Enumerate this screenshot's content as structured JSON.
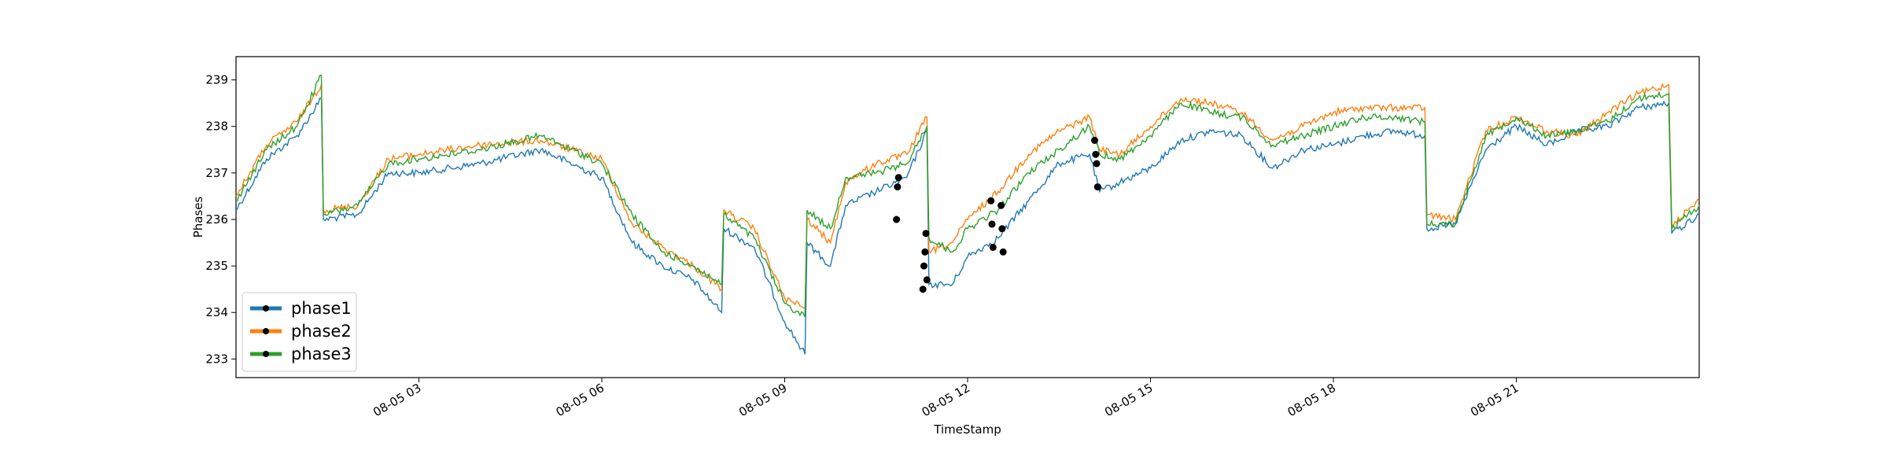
{
  "chart_data": {
    "type": "line",
    "title": "",
    "xlabel": "TimeStamp",
    "ylabel": "Phases",
    "xlim": [
      "2023-08-05 00:00",
      "2023-08-06 00:00"
    ],
    "ylim": [
      232.6,
      239.5
    ],
    "x_ticks": [
      {
        "value": "2023-08-05 03:00",
        "label": "08-05 03"
      },
      {
        "value": "2023-08-05 06:00",
        "label": "08-05 06"
      },
      {
        "value": "2023-08-05 09:00",
        "label": "08-05 09"
      },
      {
        "value": "2023-08-05 12:00",
        "label": "08-05 12"
      },
      {
        "value": "2023-08-05 15:00",
        "label": "08-05 15"
      },
      {
        "value": "2023-08-05 18:00",
        "label": "08-05 18"
      },
      {
        "value": "2023-08-05 21:00",
        "label": "08-05 21"
      }
    ],
    "y_ticks": [
      233,
      234,
      235,
      236,
      237,
      238,
      239
    ],
    "grid": false,
    "legend": {
      "position": "lower-left"
    },
    "x": [
      "2023-08-05 00:00",
      "2023-08-05 00:30",
      "2023-08-05 01:00",
      "2023-08-05 01:24",
      "2023-08-05 01:26",
      "2023-08-05 02:00",
      "2023-08-05 02:30",
      "2023-08-05 03:00",
      "2023-08-05 04:00",
      "2023-08-05 05:00",
      "2023-08-05 06:00",
      "2023-08-05 06:30",
      "2023-08-05 07:00",
      "2023-08-05 07:30",
      "2023-08-05 07:58",
      "2023-08-05 08:00",
      "2023-08-05 08:30",
      "2023-08-05 09:00",
      "2023-08-05 09:20",
      "2023-08-05 09:22",
      "2023-08-05 09:45",
      "2023-08-05 10:00",
      "2023-08-05 10:30",
      "2023-08-05 11:00",
      "2023-08-05 11:20",
      "2023-08-05 11:22",
      "2023-08-05 11:45",
      "2023-08-05 12:00",
      "2023-08-05 12:30",
      "2023-08-05 13:00",
      "2023-08-05 13:30",
      "2023-08-05 14:00",
      "2023-08-05 14:10",
      "2023-08-05 14:30",
      "2023-08-05 15:00",
      "2023-08-05 15:30",
      "2023-08-05 16:00",
      "2023-08-05 16:30",
      "2023-08-05 17:00",
      "2023-08-05 17:30",
      "2023-08-05 18:00",
      "2023-08-05 18:30",
      "2023-08-05 19:00",
      "2023-08-05 19:30",
      "2023-08-05 19:32",
      "2023-08-05 20:00",
      "2023-08-05 20:30",
      "2023-08-05 21:00",
      "2023-08-05 21:30",
      "2023-08-05 22:00",
      "2023-08-05 22:30",
      "2023-08-05 23:00",
      "2023-08-05 23:30",
      "2023-08-05 23:33",
      "2023-08-06 00:00"
    ],
    "series": [
      {
        "name": "phase1",
        "color": "#1f77b4",
        "values": [
          236.2,
          237.3,
          237.8,
          238.6,
          236.0,
          236.1,
          237.0,
          237.0,
          237.2,
          237.5,
          236.9,
          235.5,
          235.0,
          234.7,
          234.0,
          235.8,
          235.4,
          233.8,
          233.1,
          235.5,
          235.0,
          236.3,
          236.6,
          236.9,
          237.9,
          234.6,
          234.6,
          235.2,
          235.6,
          236.4,
          237.2,
          237.4,
          236.6,
          236.8,
          237.1,
          237.7,
          237.9,
          237.8,
          237.1,
          237.5,
          237.6,
          237.8,
          237.9,
          237.8,
          235.8,
          235.9,
          237.5,
          238.0,
          237.6,
          237.9,
          238.0,
          238.4,
          238.5,
          235.7,
          236.1
        ]
      },
      {
        "name": "phase2",
        "color": "#ff7f0e",
        "values": [
          236.5,
          237.6,
          238.1,
          238.9,
          236.2,
          236.3,
          237.3,
          237.4,
          237.6,
          237.7,
          237.3,
          235.9,
          235.4,
          235.0,
          234.5,
          236.2,
          235.8,
          234.3,
          234.1,
          236.0,
          235.5,
          236.8,
          237.2,
          237.4,
          238.2,
          235.3,
          235.5,
          236.0,
          236.6,
          237.4,
          237.9,
          238.2,
          237.5,
          237.4,
          238.0,
          238.6,
          238.5,
          238.3,
          237.7,
          238.0,
          238.3,
          238.4,
          238.4,
          238.4,
          236.1,
          236.0,
          237.9,
          238.2,
          237.9,
          237.8,
          238.3,
          238.7,
          238.9,
          235.9,
          236.4
        ]
      },
      {
        "name": "phase3",
        "color": "#2ca02c",
        "values": [
          236.4,
          237.5,
          238.0,
          239.1,
          236.1,
          236.3,
          237.2,
          237.3,
          237.5,
          237.8,
          237.2,
          236.1,
          235.3,
          235.0,
          234.6,
          236.1,
          235.6,
          234.2,
          233.9,
          236.2,
          235.8,
          236.9,
          237.0,
          237.2,
          238.0,
          235.6,
          235.3,
          235.8,
          236.2,
          237.0,
          237.5,
          238.0,
          237.4,
          237.3,
          237.8,
          238.5,
          238.3,
          238.2,
          237.6,
          237.8,
          238.0,
          238.2,
          238.2,
          238.1,
          235.9,
          235.9,
          237.8,
          238.2,
          237.8,
          237.9,
          238.1,
          238.6,
          238.7,
          235.8,
          236.3
        ]
      }
    ],
    "markers": [
      {
        "x": "2023-08-05 10:50",
        "y": 236.0
      },
      {
        "x": "2023-08-05 10:51",
        "y": 236.7
      },
      {
        "x": "2023-08-05 10:52",
        "y": 236.9
      },
      {
        "x": "2023-08-05 11:16",
        "y": 234.5
      },
      {
        "x": "2023-08-05 11:17",
        "y": 235.0
      },
      {
        "x": "2023-08-05 11:18",
        "y": 235.3
      },
      {
        "x": "2023-08-05 11:19",
        "y": 235.7
      },
      {
        "x": "2023-08-05 11:20",
        "y": 234.7
      },
      {
        "x": "2023-08-05 12:23",
        "y": 236.4
      },
      {
        "x": "2023-08-05 12:24",
        "y": 235.9
      },
      {
        "x": "2023-08-05 12:25",
        "y": 235.4
      },
      {
        "x": "2023-08-05 12:33",
        "y": 236.3
      },
      {
        "x": "2023-08-05 12:34",
        "y": 235.8
      },
      {
        "x": "2023-08-05 12:35",
        "y": 235.3
      },
      {
        "x": "2023-08-05 14:05",
        "y": 237.7
      },
      {
        "x": "2023-08-05 14:06",
        "y": 237.4
      },
      {
        "x": "2023-08-05 14:07",
        "y": 237.2
      },
      {
        "x": "2023-08-05 14:08",
        "y": 236.7
      }
    ]
  }
}
